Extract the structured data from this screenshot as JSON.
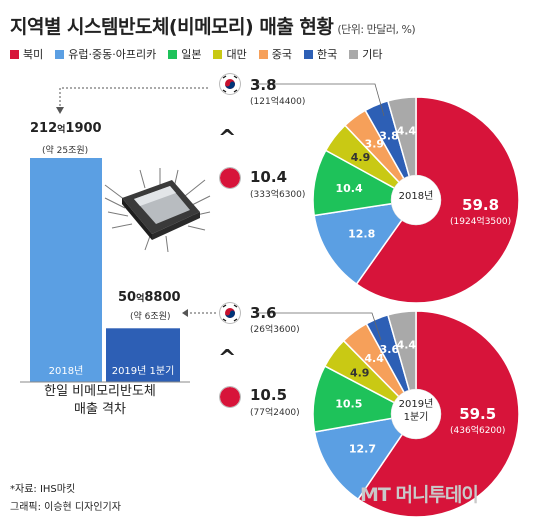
{
  "title": "지역별 시스템반도체(비메모리) 매출 현황",
  "unit": "(단위: 만달러, %)",
  "legend": [
    {
      "name": "북미",
      "color": "#d7143a"
    },
    {
      "name": "유럽·중동·아프리카",
      "color": "#5b9fe3"
    },
    {
      "name": "일본",
      "color": "#1ec25a"
    },
    {
      "name": "대만",
      "color": "#c9c914"
    },
    {
      "name": "중국",
      "color": "#f6a05a"
    },
    {
      "name": "한국",
      "color": "#2d5fb5"
    },
    {
      "name": "기타",
      "color": "#a9a9a9"
    }
  ],
  "bar_chart": {
    "caption_line1": "한일 비메모리반도체",
    "caption_line2": "매출 격차",
    "bars": [
      {
        "label": "2018년",
        "value_main": "212",
        "value_unit": "억",
        "value_rest": "1900",
        "sub": "(약 25조원)"
      },
      {
        "label": "2019년 1분기",
        "value_main": "50",
        "value_unit": "억",
        "value_rest": "8800",
        "sub": "(약 6조원)"
      }
    ]
  },
  "pies": [
    {
      "center_line1": "2018년",
      "north_america": {
        "value": "59.8",
        "amount": "(1924억3500)"
      },
      "korea": {
        "value": "3.8",
        "amount": "(121억4400)"
      },
      "japan": {
        "value": "10.4",
        "amount": "(333억6300)"
      }
    },
    {
      "center_line1": "2019년",
      "center_line2": "1분기",
      "north_america": {
        "value": "59.5",
        "amount": "(436억6200)"
      },
      "korea": {
        "value": "3.6",
        "amount": "(26억3600)"
      },
      "japan": {
        "value": "10.5",
        "amount": "(77억2400)"
      }
    }
  ],
  "caret": "^",
  "source": "*자료: IHS마킷",
  "credit": "그래픽: 이승현 디자인기자",
  "logo": "MT 머니투데이",
  "chart_data": [
    {
      "type": "bar",
      "categories": [
        "2018년",
        "2019년 1분기"
      ],
      "values": [
        2121900,
        508800
      ]
    },
    {
      "type": "pie",
      "title": "2018년",
      "categories": [
        "북미",
        "유럽·중동·아프리카",
        "일본",
        "대만",
        "중국",
        "한국",
        "기타"
      ],
      "values": [
        59.8,
        12.8,
        10.4,
        4.9,
        3.9,
        3.8,
        4.4
      ]
    },
    {
      "type": "pie",
      "title": "2019년 1분기",
      "categories": [
        "북미",
        "유럽·중동·아프리카",
        "일본",
        "대만",
        "중국",
        "한국",
        "기타"
      ],
      "values": [
        59.5,
        12.7,
        10.5,
        4.9,
        4.4,
        3.6,
        4.4
      ]
    }
  ]
}
